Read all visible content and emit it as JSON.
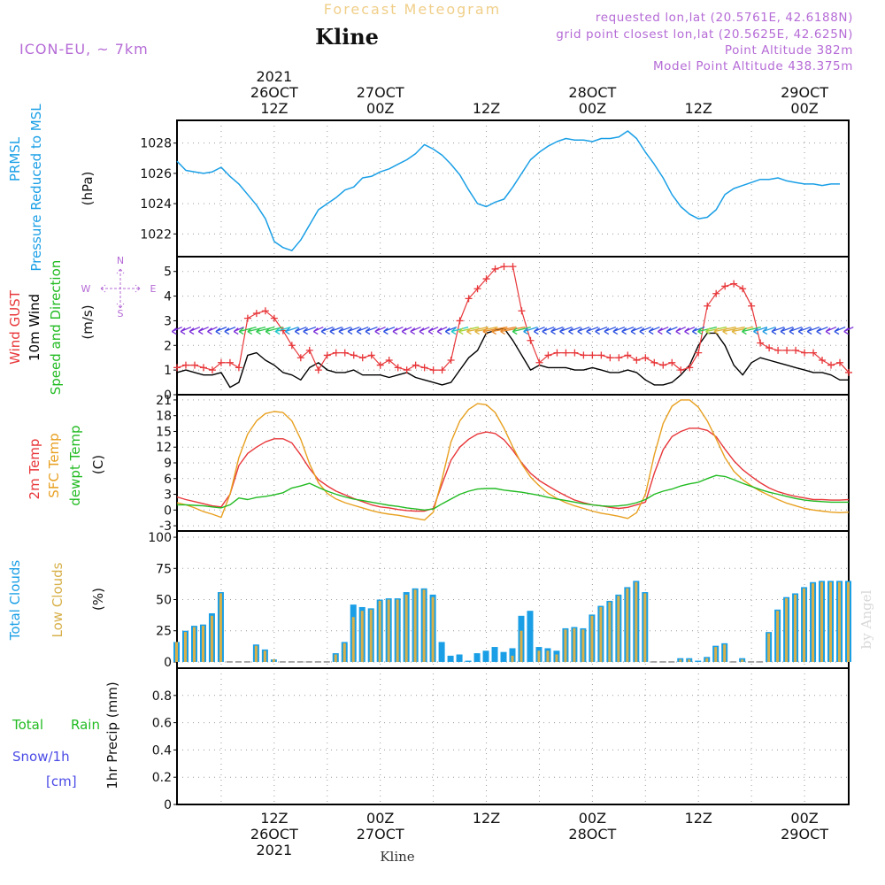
{
  "header": {
    "subtitle": "Forecast Meteogram",
    "title": "Kline",
    "model": "ICON-EU, ~ 7km",
    "requested": "requested lon,lat (20.5761E, 42.6188N)",
    "grid_point": "grid point closest lon,lat (20.5625E, 42.625N)",
    "point_altitude": "Point Altitude 382m",
    "model_altitude": "Model Point Altitude 438.375m",
    "credit": "by Angel",
    "footer_station": "Kline"
  },
  "colors": {
    "pressure": "#1a9fe6",
    "gust": "#e8373a",
    "wind": "#000000",
    "arrows_label": "#22bb22",
    "t2m": "#e8373a",
    "sfc": "#e8a020",
    "dewpt": "#22bb22",
    "total_clouds": "#1a9fe6",
    "low_clouds": "#d7b04a",
    "precip": "#22bb22",
    "snow": "#4a4ae6",
    "purple": "#b56bd6"
  },
  "time_axis": {
    "top_labels": [
      {
        "h": 12,
        "lines": [
          "2021",
          "26OCT",
          "12Z"
        ]
      },
      {
        "h": 24,
        "lines": [
          "27OCT",
          "00Z"
        ]
      },
      {
        "h": 36,
        "lines": [
          "12Z"
        ]
      },
      {
        "h": 48,
        "lines": [
          "28OCT",
          "00Z"
        ]
      },
      {
        "h": 60,
        "lines": [
          "12Z"
        ]
      },
      {
        "h": 72,
        "lines": [
          "29OCT",
          "00Z"
        ]
      }
    ],
    "bottom_labels": [
      {
        "h": 12,
        "lines": [
          "12Z",
          "26OCT",
          "2021"
        ]
      },
      {
        "h": 24,
        "lines": [
          "00Z",
          "27OCT"
        ]
      },
      {
        "h": 36,
        "lines": [
          "12Z"
        ]
      },
      {
        "h": 48,
        "lines": [
          "00Z",
          "28OCT"
        ]
      },
      {
        "h": 60,
        "lines": [
          "12Z"
        ]
      },
      {
        "h": 72,
        "lines": [
          "00Z",
          "29OCT"
        ]
      }
    ],
    "range_hours": [
      1,
      77
    ]
  },
  "compass": {
    "n": "N",
    "s": "S",
    "w": "W",
    "e": "E"
  },
  "chart_data": [
    {
      "type": "line",
      "name": "pressure",
      "ylabel_lines": [
        "PRMSL",
        "Pressure Reduced to MSL",
        "(hPa)"
      ],
      "ylim": [
        1020.5,
        1029.5
      ],
      "yticks": [
        1022,
        1024,
        1026,
        1028
      ],
      "x": [
        1,
        2,
        3,
        4,
        5,
        6,
        7,
        8,
        9,
        10,
        11,
        12,
        13,
        14,
        15,
        16,
        17,
        18,
        19,
        20,
        21,
        22,
        23,
        24,
        25,
        26,
        27,
        28,
        29,
        30,
        31,
        32,
        33,
        34,
        35,
        36,
        37,
        38,
        39,
        40,
        41,
        42,
        43,
        44,
        45,
        46,
        47,
        48,
        49,
        50,
        51,
        52,
        53,
        54,
        55,
        56,
        57,
        58,
        59,
        60,
        61,
        62,
        63,
        64,
        65,
        66,
        67,
        68,
        69,
        70,
        71,
        72,
        73,
        74,
        75,
        76
      ],
      "values": [
        1026.8,
        1026.2,
        1026.1,
        1026.0,
        1026.1,
        1026.4,
        1025.8,
        1025.3,
        1024.6,
        1023.9,
        1023.0,
        1021.5,
        1021.1,
        1020.9,
        1021.6,
        1022.6,
        1023.6,
        1024.0,
        1024.4,
        1024.9,
        1025.1,
        1025.7,
        1025.8,
        1026.1,
        1026.3,
        1026.6,
        1026.9,
        1027.3,
        1027.9,
        1027.6,
        1027.2,
        1026.6,
        1025.9,
        1024.9,
        1024.0,
        1023.8,
        1024.1,
        1024.3,
        1025.1,
        1026.0,
        1026.9,
        1027.4,
        1027.8,
        1028.1,
        1028.3,
        1028.2,
        1028.2,
        1028.1,
        1028.3,
        1028.3,
        1028.4,
        1028.8,
        1028.3,
        1027.4,
        1026.6,
        1025.7,
        1024.6,
        1023.8,
        1023.3,
        1023.0,
        1023.1,
        1023.6,
        1024.6,
        1025.0,
        1025.2,
        1025.4,
        1025.6,
        1025.6,
        1025.7,
        1025.5,
        1025.4,
        1025.3,
        1025.3,
        1025.2,
        1025.3,
        1025.3
      ]
    },
    {
      "type": "line",
      "name": "wind",
      "ylabel_lines": [
        "Wind GUST",
        "10m Wind",
        "Speed and Direction",
        "(m/s)"
      ],
      "ylim": [
        0,
        5.6
      ],
      "yticks": [
        0,
        1,
        2,
        3,
        4,
        5
      ],
      "arrow_level": 2.6,
      "x": [
        1,
        2,
        3,
        4,
        5,
        6,
        7,
        8,
        9,
        10,
        11,
        12,
        13,
        14,
        15,
        16,
        17,
        18,
        19,
        20,
        21,
        22,
        23,
        24,
        25,
        26,
        27,
        28,
        29,
        30,
        31,
        32,
        33,
        34,
        35,
        36,
        37,
        38,
        39,
        40,
        41,
        42,
        43,
        44,
        45,
        46,
        47,
        48,
        49,
        50,
        51,
        52,
        53,
        54,
        55,
        56,
        57,
        58,
        59,
        60,
        61,
        62,
        63,
        64,
        65,
        66,
        67,
        68,
        69,
        70,
        71,
        72,
        73,
        74,
        75,
        76,
        77
      ],
      "series": [
        {
          "name": "Wind GUST",
          "marker": "plus",
          "values": [
            1.1,
            1.2,
            1.2,
            1.1,
            1.0,
            1.3,
            1.3,
            1.1,
            3.1,
            3.3,
            3.4,
            3.1,
            2.6,
            2.0,
            1.5,
            1.8,
            1.0,
            1.6,
            1.7,
            1.7,
            1.6,
            1.5,
            1.6,
            1.2,
            1.4,
            1.1,
            1.0,
            1.2,
            1.1,
            1.0,
            1.0,
            1.4,
            3.0,
            3.9,
            4.3,
            4.7,
            5.1,
            5.2,
            5.2,
            3.4,
            2.2,
            1.3,
            1.6,
            1.7,
            1.7,
            1.7,
            1.6,
            1.6,
            1.6,
            1.5,
            1.5,
            1.6,
            1.4,
            1.5,
            1.3,
            1.2,
            1.3,
            1.0,
            1.1,
            1.7,
            3.6,
            4.1,
            4.4,
            4.5,
            4.3,
            3.6,
            2.1,
            1.9,
            1.8,
            1.8,
            1.8,
            1.7,
            1.7,
            1.4,
            1.2,
            1.3,
            0.9
          ]
        },
        {
          "name": "10m Wind",
          "marker": "none",
          "values": [
            0.9,
            1.0,
            0.9,
            0.8,
            0.8,
            0.9,
            0.3,
            0.5,
            1.6,
            1.7,
            1.4,
            1.2,
            0.9,
            0.8,
            0.6,
            1.1,
            1.3,
            1.0,
            0.9,
            0.9,
            1.0,
            0.8,
            0.8,
            0.8,
            0.7,
            0.8,
            0.9,
            0.7,
            0.6,
            0.5,
            0.4,
            0.5,
            1.0,
            1.5,
            1.8,
            2.5,
            2.6,
            2.7,
            2.2,
            1.6,
            1.0,
            1.2,
            1.1,
            1.1,
            1.1,
            1.0,
            1.0,
            1.1,
            1.0,
            0.9,
            0.9,
            1.0,
            0.9,
            0.6,
            0.4,
            0.4,
            0.5,
            0.8,
            1.2,
            2.0,
            2.5,
            2.5,
            2.0,
            1.2,
            0.8,
            1.3,
            1.5,
            1.4,
            1.3,
            1.2,
            1.1,
            1.0,
            0.9,
            0.9,
            0.8,
            0.6,
            0.6
          ]
        }
      ]
    },
    {
      "type": "line",
      "name": "temperature",
      "ylabel_lines": [
        "2m Temp",
        "SFC Temp",
        "dewpt Temp",
        "(C)"
      ],
      "ylim": [
        -4,
        22
      ],
      "yticks": [
        -3,
        0,
        3,
        6,
        9,
        12,
        15,
        18,
        21
      ],
      "x": [
        1,
        2,
        3,
        4,
        5,
        6,
        7,
        8,
        9,
        10,
        11,
        12,
        13,
        14,
        15,
        16,
        17,
        18,
        19,
        20,
        21,
        22,
        23,
        24,
        25,
        26,
        27,
        28,
        29,
        30,
        31,
        32,
        33,
        34,
        35,
        36,
        37,
        38,
        39,
        40,
        41,
        42,
        43,
        44,
        45,
        46,
        47,
        48,
        49,
        50,
        51,
        52,
        53,
        54,
        55,
        56,
        57,
        58,
        59,
        60,
        61,
        62,
        63,
        64,
        65,
        66,
        67,
        68,
        69,
        70,
        71,
        72,
        73,
        74,
        75,
        76,
        77
      ],
      "series": [
        {
          "name": "2m Temp",
          "values": [
            2.5,
            2.0,
            1.6,
            1.2,
            0.8,
            0.6,
            3.0,
            8.5,
            10.8,
            12.0,
            13.0,
            13.6,
            13.6,
            12.8,
            10.5,
            7.9,
            5.8,
            4.6,
            3.6,
            2.9,
            2.2,
            1.6,
            1.0,
            0.6,
            0.4,
            0.1,
            -0.1,
            -0.2,
            -0.2,
            0.3,
            5.0,
            9.5,
            12.0,
            13.5,
            14.5,
            14.9,
            14.6,
            13.4,
            11.4,
            9.0,
            7.0,
            5.6,
            4.6,
            3.6,
            2.7,
            1.9,
            1.4,
            1.0,
            0.8,
            0.5,
            0.3,
            0.5,
            1.0,
            1.5,
            7.0,
            11.5,
            14.0,
            15.0,
            15.6,
            15.6,
            15.2,
            14.0,
            11.6,
            9.4,
            7.7,
            6.4,
            5.2,
            4.2,
            3.5,
            3.0,
            2.6,
            2.3,
            2.0,
            2.0,
            1.9,
            1.9,
            2.0
          ]
        },
        {
          "name": "SFC Temp",
          "values": [
            1.4,
            1.0,
            0.4,
            -0.3,
            -0.8,
            -1.4,
            3.0,
            10.0,
            14.5,
            17.0,
            18.4,
            18.8,
            18.6,
            17.0,
            13.5,
            8.8,
            5.2,
            3.2,
            2.1,
            1.4,
            0.9,
            0.4,
            -0.1,
            -0.5,
            -0.8,
            -1.0,
            -1.3,
            -1.6,
            -1.9,
            -0.4,
            6.0,
            13.0,
            17.0,
            19.2,
            20.3,
            20.1,
            18.6,
            15.6,
            12.0,
            8.8,
            6.3,
            4.6,
            3.2,
            2.2,
            1.4,
            0.8,
            0.3,
            -0.2,
            -0.6,
            -0.9,
            -1.2,
            -1.6,
            -0.5,
            3.0,
            10.5,
            16.5,
            19.8,
            21.0,
            21.0,
            19.6,
            17.0,
            13.6,
            10.0,
            7.4,
            5.8,
            4.6,
            3.6,
            2.8,
            2.0,
            1.3,
            0.8,
            0.3,
            0.0,
            -0.2,
            -0.4,
            -0.5,
            -0.4
          ]
        },
        {
          "name": "dewpt Temp",
          "values": [
            1.0,
            1.0,
            0.9,
            0.8,
            0.6,
            0.4,
            1.0,
            2.3,
            2.0,
            2.4,
            2.6,
            2.9,
            3.3,
            4.2,
            4.6,
            5.1,
            4.3,
            3.6,
            3.0,
            2.5,
            2.1,
            1.8,
            1.5,
            1.2,
            0.9,
            0.7,
            0.4,
            0.2,
            0.0,
            0.2,
            1.2,
            2.1,
            3.0,
            3.6,
            4.0,
            4.1,
            4.1,
            3.8,
            3.6,
            3.4,
            3.1,
            2.8,
            2.4,
            2.1,
            1.8,
            1.5,
            1.2,
            1.0,
            0.8,
            0.7,
            0.8,
            1.0,
            1.4,
            2.0,
            3.0,
            3.6,
            4.0,
            4.6,
            5.0,
            5.3,
            6.0,
            6.6,
            6.4,
            5.8,
            5.1,
            4.5,
            3.9,
            3.4,
            3.0,
            2.6,
            2.2,
            1.9,
            1.7,
            1.6,
            1.5,
            1.5,
            1.5
          ]
        }
      ]
    },
    {
      "type": "bar",
      "name": "clouds",
      "ylabel_lines": [
        "Total Clouds",
        "Low Clouds",
        "(%)"
      ],
      "ylim": [
        -5,
        105
      ],
      "yticks": [
        0,
        25,
        50,
        75,
        100
      ],
      "x": [
        1,
        2,
        3,
        4,
        5,
        6,
        7,
        8,
        9,
        10,
        11,
        12,
        13,
        14,
        15,
        16,
        17,
        18,
        19,
        20,
        21,
        22,
        23,
        24,
        25,
        26,
        27,
        28,
        29,
        30,
        31,
        32,
        33,
        34,
        35,
        36,
        37,
        38,
        39,
        40,
        41,
        42,
        43,
        44,
        45,
        46,
        47,
        48,
        49,
        50,
        51,
        52,
        53,
        54,
        55,
        56,
        57,
        58,
        59,
        60,
        61,
        62,
        63,
        64,
        65,
        66,
        67,
        68,
        69,
        70,
        71,
        72,
        73,
        74,
        75,
        76,
        77
      ],
      "series": [
        {
          "name": "Total Clouds",
          "values": [
            16,
            25,
            29,
            30,
            39,
            56,
            0,
            0,
            0,
            14,
            10,
            2,
            0,
            0,
            0,
            0,
            0,
            0,
            7,
            16,
            46,
            44,
            43,
            50,
            51,
            51,
            56,
            59,
            59,
            54,
            16,
            5,
            6,
            1,
            7,
            9,
            12,
            8,
            11,
            37,
            41,
            12,
            11,
            9,
            27,
            28,
            27,
            38,
            45,
            49,
            54,
            60,
            65,
            56,
            0,
            0,
            0,
            3,
            3,
            1,
            4,
            13,
            15,
            0,
            3,
            0,
            0,
            24,
            42,
            52,
            55,
            60,
            64,
            65,
            65,
            65,
            65
          ]
        },
        {
          "name": "Low Clouds",
          "values": [
            16,
            24,
            28,
            29,
            37,
            55,
            0,
            0,
            0,
            13,
            9,
            2,
            0,
            0,
            0,
            0,
            0,
            0,
            6,
            15,
            36,
            41,
            42,
            49,
            50,
            50,
            54,
            58,
            58,
            52,
            0,
            0,
            0,
            0,
            0,
            0,
            0,
            0,
            5,
            25,
            0,
            9,
            9,
            6,
            26,
            27,
            26,
            37,
            44,
            48,
            53,
            59,
            64,
            55,
            0,
            0,
            0,
            2,
            2,
            0,
            3,
            12,
            14,
            0,
            2,
            0,
            0,
            23,
            41,
            51,
            54,
            59,
            63,
            64,
            64,
            64,
            64
          ]
        }
      ]
    },
    {
      "type": "bar",
      "name": "precipitation",
      "ylabel_lines": [
        "1hr Precip (mm)"
      ],
      "legend": [
        "Total",
        "Rain",
        "Snow/1h",
        "[cm]"
      ],
      "ylim": [
        0,
        1.0
      ],
      "yticks": [
        0,
        0.2,
        0.4,
        0.6,
        0.8
      ],
      "ytick_labels": [
        "0",
        "0.2",
        "0.4",
        "0.6",
        "0.8"
      ],
      "values": [
        0
      ]
    }
  ]
}
